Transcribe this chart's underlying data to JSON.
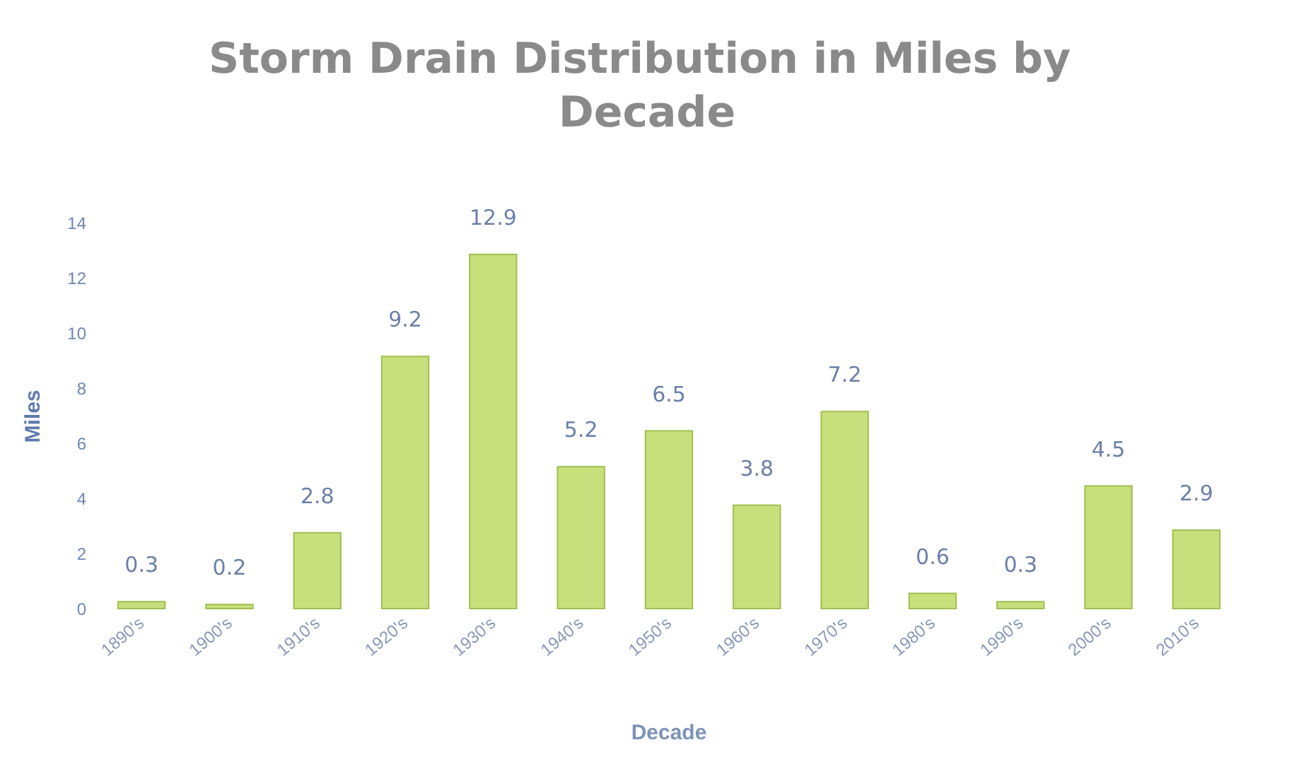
{
  "chart_data": {
    "type": "bar",
    "title": "Storm Drain Distribution in Miles by Decade",
    "xlabel": "Decade",
    "ylabel": "Miles",
    "categories": [
      "1890's",
      "1900's",
      "1910's",
      "1920's",
      "1930's",
      "1940's",
      "1950's",
      "1960's",
      "1970's",
      "1980's",
      "1990's",
      "2000's",
      "2010's"
    ],
    "values": [
      0.3,
      0.2,
      2.8,
      9.2,
      12.9,
      5.2,
      6.5,
      3.8,
      7.2,
      0.6,
      0.3,
      4.5,
      2.9
    ],
    "color": "#c8e07c",
    "ylim": [
      0,
      14
    ],
    "yticks": [
      0,
      2,
      4,
      6,
      8,
      10,
      12,
      14
    ],
    "grid": false,
    "data_labels": true
  }
}
